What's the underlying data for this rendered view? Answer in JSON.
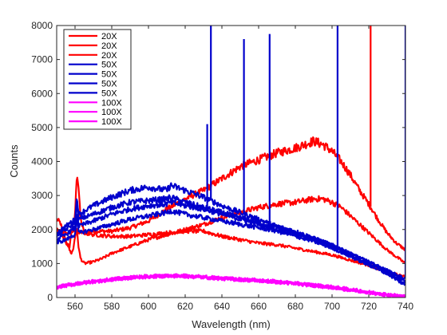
{
  "chart_data": {
    "type": "line",
    "title": "",
    "xlabel": "Wavelength (nm)",
    "ylabel": "Counts",
    "xlim": [
      550,
      740
    ],
    "ylim": [
      0,
      8000
    ],
    "xticks": [
      560,
      580,
      600,
      620,
      640,
      660,
      680,
      700,
      720,
      740
    ],
    "yticks": [
      0,
      1000,
      2000,
      3000,
      4000,
      5000,
      6000,
      7000,
      8000
    ],
    "grid": false,
    "legend_position": "top-left",
    "series": [
      {
        "name": "20X",
        "color": "#ff0000",
        "points": [
          [
            550,
            2300
          ],
          [
            552,
            2200
          ],
          [
            555,
            1600
          ],
          [
            557,
            1500
          ],
          [
            558,
            1900
          ],
          [
            559,
            2150
          ],
          [
            560,
            2400
          ],
          [
            561,
            3700
          ],
          [
            562,
            3200
          ],
          [
            563,
            2300
          ],
          [
            565,
            1900
          ],
          [
            570,
            1950
          ],
          [
            575,
            1950
          ],
          [
            580,
            1950
          ],
          [
            590,
            2050
          ],
          [
            600,
            2250
          ],
          [
            610,
            2600
          ],
          [
            620,
            2900
          ],
          [
            630,
            3150
          ],
          [
            640,
            3500
          ],
          [
            650,
            3850
          ],
          [
            660,
            4050
          ],
          [
            670,
            4250
          ],
          [
            680,
            4400
          ],
          [
            690,
            4600
          ],
          [
            695,
            4500
          ],
          [
            700,
            4300
          ],
          [
            705,
            4000
          ],
          [
            710,
            3600
          ],
          [
            715,
            3150
          ],
          [
            720,
            2750
          ],
          [
            725,
            2300
          ],
          [
            730,
            1900
          ],
          [
            735,
            1600
          ],
          [
            740,
            1400
          ]
        ],
        "spikes": [
          [
            721,
            8000
          ]
        ]
      },
      {
        "name": "20X",
        "color": "#ff0000",
        "points": [
          [
            550,
            2000
          ],
          [
            552,
            1900
          ],
          [
            555,
            1700
          ],
          [
            557,
            1400
          ],
          [
            558,
            1300
          ],
          [
            559,
            1400
          ],
          [
            560,
            1800
          ],
          [
            561,
            2000
          ],
          [
            562,
            1450
          ],
          [
            563,
            1150
          ],
          [
            565,
            1000
          ],
          [
            570,
            1050
          ],
          [
            575,
            1150
          ],
          [
            580,
            1300
          ],
          [
            590,
            1500
          ],
          [
            600,
            1700
          ],
          [
            610,
            1850
          ],
          [
            620,
            2000
          ],
          [
            630,
            2150
          ],
          [
            640,
            2350
          ],
          [
            650,
            2500
          ],
          [
            660,
            2650
          ],
          [
            670,
            2750
          ],
          [
            680,
            2800
          ],
          [
            690,
            2900
          ],
          [
            695,
            2900
          ],
          [
            700,
            2800
          ],
          [
            705,
            2650
          ],
          [
            710,
            2400
          ],
          [
            715,
            2150
          ],
          [
            720,
            1900
          ],
          [
            725,
            1650
          ],
          [
            730,
            1400
          ],
          [
            735,
            1200
          ],
          [
            740,
            1000
          ]
        ],
        "spikes": []
      },
      {
        "name": "20X",
        "color": "#ff0000",
        "points": [
          [
            550,
            2000
          ],
          [
            555,
            1900
          ],
          [
            560,
            1950
          ],
          [
            565,
            1900
          ],
          [
            570,
            1850
          ],
          [
            580,
            1800
          ],
          [
            590,
            1800
          ],
          [
            600,
            1850
          ],
          [
            610,
            1900
          ],
          [
            620,
            1950
          ],
          [
            630,
            1950
          ],
          [
            640,
            1800
          ],
          [
            650,
            1700
          ],
          [
            660,
            1600
          ],
          [
            670,
            1550
          ],
          [
            680,
            1450
          ],
          [
            690,
            1350
          ],
          [
            700,
            1250
          ],
          [
            710,
            1100
          ],
          [
            720,
            950
          ],
          [
            730,
            750
          ],
          [
            740,
            600
          ]
        ],
        "spikes": []
      },
      {
        "name": "50X",
        "color": "#0000cc",
        "points": [
          [
            550,
            1900
          ],
          [
            555,
            2100
          ],
          [
            560,
            2300
          ],
          [
            561,
            2950
          ],
          [
            562,
            2450
          ],
          [
            570,
            2700
          ],
          [
            580,
            2950
          ],
          [
            590,
            3150
          ],
          [
            600,
            3250
          ],
          [
            605,
            3200
          ],
          [
            610,
            3150
          ],
          [
            612,
            3300
          ],
          [
            620,
            3150
          ],
          [
            630,
            2950
          ],
          [
            640,
            2700
          ],
          [
            650,
            2500
          ],
          [
            660,
            2300
          ],
          [
            670,
            2100
          ],
          [
            680,
            1950
          ],
          [
            690,
            1750
          ],
          [
            700,
            1550
          ],
          [
            710,
            1300
          ],
          [
            720,
            1050
          ],
          [
            730,
            800
          ],
          [
            740,
            550
          ]
        ],
        "spikes": [
          [
            634,
            8000
          ],
          [
            652,
            7600
          ],
          [
            666,
            7750
          ],
          [
            703,
            8000
          ],
          [
            740,
            8000
          ]
        ]
      },
      {
        "name": "50X",
        "color": "#0000cc",
        "points": [
          [
            550,
            1800
          ],
          [
            555,
            2000
          ],
          [
            560,
            2200
          ],
          [
            561,
            2800
          ],
          [
            562,
            2300
          ],
          [
            570,
            2450
          ],
          [
            580,
            2650
          ],
          [
            590,
            2800
          ],
          [
            600,
            2850
          ],
          [
            610,
            2900
          ],
          [
            612,
            2950
          ],
          [
            620,
            2800
          ],
          [
            630,
            2650
          ],
          [
            640,
            2500
          ],
          [
            650,
            2350
          ],
          [
            660,
            2200
          ],
          [
            670,
            2050
          ],
          [
            680,
            1900
          ],
          [
            690,
            1750
          ],
          [
            700,
            1550
          ],
          [
            710,
            1300
          ],
          [
            720,
            1050
          ],
          [
            730,
            800
          ],
          [
            740,
            450
          ]
        ],
        "spikes": [
          [
            632,
            5100
          ]
        ]
      },
      {
        "name": "50X",
        "color": "#0000cc",
        "points": [
          [
            550,
            1700
          ],
          [
            555,
            1850
          ],
          [
            560,
            2050
          ],
          [
            561,
            2550
          ],
          [
            562,
            2100
          ],
          [
            570,
            2250
          ],
          [
            580,
            2450
          ],
          [
            590,
            2600
          ],
          [
            600,
            2700
          ],
          [
            610,
            2750
          ],
          [
            612,
            2800
          ],
          [
            620,
            2700
          ],
          [
            630,
            2600
          ],
          [
            640,
            2450
          ],
          [
            650,
            2300
          ],
          [
            660,
            2150
          ],
          [
            670,
            2000
          ],
          [
            680,
            1850
          ],
          [
            690,
            1700
          ],
          [
            700,
            1500
          ],
          [
            710,
            1250
          ],
          [
            720,
            1000
          ],
          [
            730,
            750
          ],
          [
            740,
            400
          ]
        ],
        "spikes": []
      },
      {
        "name": "50X",
        "color": "#0000cc",
        "points": [
          [
            550,
            1600
          ],
          [
            555,
            1700
          ],
          [
            560,
            1850
          ],
          [
            561,
            2350
          ],
          [
            562,
            1900
          ],
          [
            570,
            2000
          ],
          [
            580,
            2150
          ],
          [
            590,
            2300
          ],
          [
            600,
            2400
          ],
          [
            610,
            2500
          ],
          [
            612,
            2550
          ],
          [
            620,
            2450
          ],
          [
            630,
            2350
          ],
          [
            640,
            2250
          ],
          [
            650,
            2150
          ],
          [
            660,
            2050
          ],
          [
            670,
            1950
          ],
          [
            680,
            1800
          ],
          [
            690,
            1650
          ],
          [
            700,
            1450
          ],
          [
            710,
            1200
          ],
          [
            720,
            950
          ],
          [
            730,
            700
          ],
          [
            740,
            350
          ]
        ],
        "spikes": []
      },
      {
        "name": "100X",
        "color": "#ff00ff",
        "points": [
          [
            550,
            330
          ],
          [
            560,
            420
          ],
          [
            570,
            490
          ],
          [
            580,
            550
          ],
          [
            590,
            600
          ],
          [
            600,
            640
          ],
          [
            610,
            660
          ],
          [
            620,
            650
          ],
          [
            630,
            620
          ],
          [
            640,
            580
          ],
          [
            650,
            550
          ],
          [
            660,
            520
          ],
          [
            670,
            480
          ],
          [
            680,
            430
          ],
          [
            690,
            380
          ],
          [
            700,
            320
          ],
          [
            710,
            250
          ],
          [
            720,
            170
          ],
          [
            730,
            100
          ],
          [
            740,
            40
          ]
        ],
        "spikes": []
      },
      {
        "name": "100X",
        "color": "#ff00ff",
        "points": [
          [
            550,
            310
          ],
          [
            560,
            400
          ],
          [
            570,
            470
          ],
          [
            580,
            530
          ],
          [
            590,
            580
          ],
          [
            600,
            620
          ],
          [
            610,
            640
          ],
          [
            620,
            630
          ],
          [
            630,
            600
          ],
          [
            640,
            560
          ],
          [
            650,
            530
          ],
          [
            660,
            500
          ],
          [
            670,
            460
          ],
          [
            680,
            410
          ],
          [
            690,
            360
          ],
          [
            700,
            300
          ],
          [
            710,
            230
          ],
          [
            720,
            150
          ],
          [
            730,
            80
          ],
          [
            740,
            20
          ]
        ],
        "spikes": []
      },
      {
        "name": "100X",
        "color": "#ff00ff",
        "points": [
          [
            550,
            290
          ],
          [
            560,
            380
          ],
          [
            570,
            450
          ],
          [
            580,
            510
          ],
          [
            590,
            560
          ],
          [
            600,
            600
          ],
          [
            610,
            620
          ],
          [
            620,
            610
          ],
          [
            630,
            580
          ],
          [
            640,
            540
          ],
          [
            650,
            510
          ],
          [
            660,
            480
          ],
          [
            670,
            440
          ],
          [
            680,
            390
          ],
          [
            690,
            340
          ],
          [
            700,
            280
          ],
          [
            710,
            210
          ],
          [
            720,
            130
          ],
          [
            730,
            60
          ],
          [
            740,
            0
          ]
        ],
        "spikes": []
      }
    ]
  }
}
